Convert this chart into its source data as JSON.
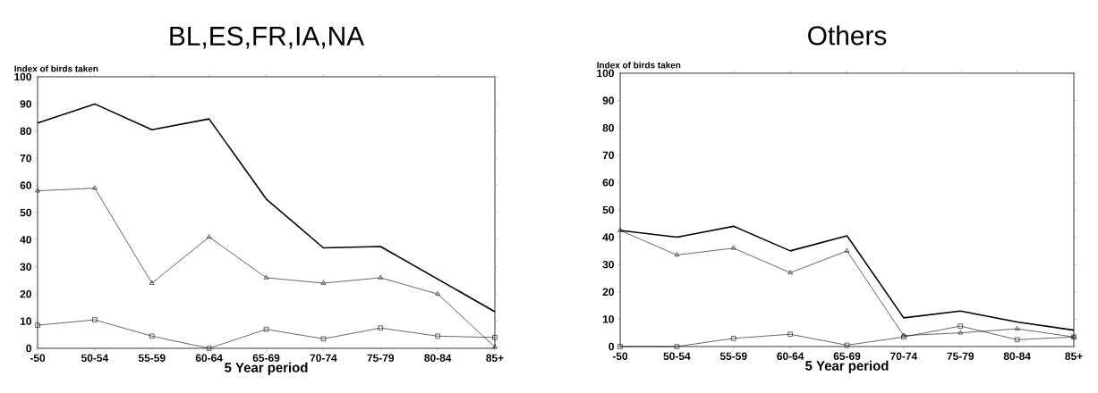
{
  "chart_data": [
    {
      "type": "line",
      "title": "BL,ES,FR,IA,NA",
      "xlabel": "5 Year period",
      "ylabel": "Index of birds taken",
      "categories": [
        "-50",
        "50-54",
        "55-59",
        "60-64",
        "65-69",
        "70-74",
        "75-79",
        "80-84",
        "85+"
      ],
      "ylim": [
        0,
        100
      ],
      "yticks": [
        0,
        10,
        20,
        30,
        40,
        50,
        60,
        70,
        80,
        90,
        100
      ],
      "grid": false,
      "series": [
        {
          "color": "#000000",
          "marker": "none",
          "values": [
            83,
            90,
            80.5,
            84.5,
            55,
            37,
            37.5,
            25.5,
            13.5
          ]
        },
        {
          "color": "#000000",
          "marker": "triangle",
          "values": [
            58,
            59,
            24,
            41,
            26,
            24,
            26,
            20,
            0.5
          ]
        },
        {
          "color": "#000000",
          "marker": "square",
          "values": [
            8.5,
            10.5,
            4.5,
            0,
            7,
            3.5,
            7.5,
            4.5,
            4
          ]
        }
      ]
    },
    {
      "type": "line",
      "title": "Others",
      "xlabel": "5 Year period",
      "ylabel": "Index of birds taken",
      "categories": [
        "-50",
        "50-54",
        "55-59",
        "60-64",
        "65-69",
        "70-74",
        "75-79",
        "80-84",
        "85+"
      ],
      "ylim": [
        0,
        100
      ],
      "yticks": [
        0,
        10,
        20,
        30,
        40,
        50,
        60,
        70,
        80,
        90,
        100
      ],
      "grid": false,
      "series": [
        {
          "color": "#000000",
          "marker": "none",
          "values": [
            42.5,
            40,
            44,
            35,
            40.5,
            10.5,
            13,
            9,
            6
          ]
        },
        {
          "color": "#000000",
          "marker": "triangle",
          "values": [
            42.5,
            33.5,
            36,
            27,
            35,
            4,
            5,
            6.5,
            3.5
          ]
        },
        {
          "color": "#000000",
          "marker": "square",
          "values": [
            0,
            0,
            3,
            4.5,
            0.5,
            3.5,
            7.5,
            2.5,
            3.5
          ]
        }
      ]
    }
  ]
}
